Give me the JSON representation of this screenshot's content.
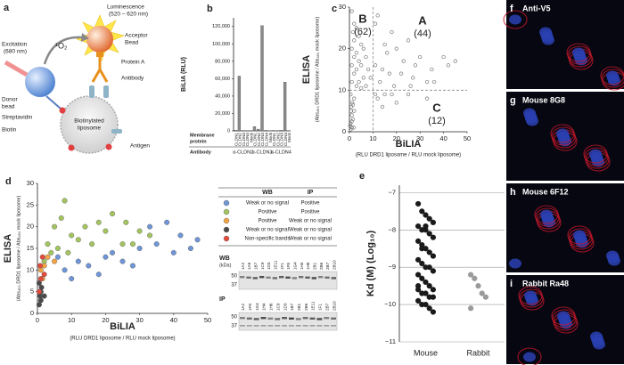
{
  "diagram": {
    "panel": "a",
    "luminescence": "Luminescence",
    "luminescence_range": "(520 – 620 nm)",
    "excitation": "Excitation",
    "excitation_wavelength": "(680 nm)",
    "singlet_oxygen": "¹O₂",
    "acceptor_bead": [
      "Acceptor",
      "Bead"
    ],
    "protein_a": "Protein A",
    "antibody": "Antibody",
    "donor_bead": [
      "Donor",
      "bead"
    ],
    "streptavidin": "Streptavidin",
    "biotin": "Biotin",
    "liposome": [
      "Biotinylated",
      "liposome"
    ],
    "antigen": "Antigen"
  },
  "chart_data": [
    {
      "panel": "b",
      "type": "bar",
      "y_label": "BiLIA (RLU)",
      "color": "#8a8a8a",
      "categories": [
        "CLDN1",
        "CLDN2",
        "CLDN3",
        "CLDN4",
        "Mock",
        "CLDN1",
        "CLDN2",
        "CLDN3",
        "CLDN4",
        "Mock",
        "CLDN1",
        "CLDN2",
        "CLDN3",
        "CLDN4",
        "Mock"
      ],
      "category_colors": [
        "#222222",
        "#d42020",
        "#222222",
        "#222222",
        "#222222",
        "#222222",
        "#222222",
        "#d42020",
        "#222222",
        "#222222",
        "#222222",
        "#222222",
        "#222222",
        "#d42020",
        "#222222"
      ],
      "values": [
        800,
        63000,
        500,
        300,
        200,
        5000,
        2000,
        121000,
        600,
        300,
        500,
        400,
        700,
        56000,
        300
      ],
      "ylim": [
        0,
        130000
      ],
      "yticks": [
        0,
        {
          "value": 20000,
          "label": "20,000"
        },
        {
          "value": 40000,
          "label": "40,000"
        },
        {
          "value": 60000,
          "label": "60,000"
        },
        {
          "value": 80000,
          "label": "80,000"
        },
        {
          "value": 100000,
          "label": "100,000"
        },
        {
          "value": 120000,
          "label": "120,000"
        }
      ],
      "membrane_label": [
        "Membrane",
        "protein"
      ],
      "antibody_label": "Antibody",
      "groups": [
        "α-CLDN2",
        "α-CLDN3",
        "α-CLDN4"
      ]
    },
    {
      "panel": "c",
      "type": "scatter",
      "color": "#777777",
      "x_label": "BiLIA",
      "x_sublabel": "(RLU DRD1 liposome / RLU mock liposome)",
      "y_label": "ELISA",
      "y_sublabel": "(Abs₄₅₀ DRD1 liposome / Abs₄₅₀ mock liposome)",
      "x": [
        1,
        2,
        1.5,
        3,
        4,
        2,
        5,
        1,
        3,
        6,
        2,
        4,
        7,
        1,
        3,
        5,
        8,
        2,
        6,
        4,
        9,
        1,
        3,
        7,
        5,
        12,
        18,
        15,
        20,
        25,
        23,
        30,
        11,
        14,
        17,
        22,
        27,
        33,
        36,
        40,
        45,
        13,
        19,
        26,
        16,
        11,
        28,
        35,
        42,
        12,
        15,
        20,
        25,
        33,
        14,
        18,
        11,
        0.5,
        1,
        0.5,
        1.5,
        1,
        2,
        0.8,
        1.2,
        2,
        0.5,
        1,
        0.3,
        1.8,
        0.7,
        1.5
      ],
      "values": [
        29,
        26,
        24,
        25,
        23,
        22,
        21,
        20,
        19,
        20,
        18,
        17,
        18,
        16,
        15,
        16,
        15,
        14,
        13,
        12,
        13,
        12,
        11,
        11,
        10.5,
        28,
        24,
        21,
        20,
        22,
        17,
        18,
        16,
        15,
        14,
        14,
        13,
        12,
        12,
        18,
        17,
        12,
        11,
        11,
        19,
        26,
        16,
        15,
        16,
        8,
        9,
        7,
        9,
        8,
        6,
        9,
        9,
        0.5,
        1,
        2,
        3,
        4,
        5,
        6,
        7,
        8,
        9,
        2.5,
        1.5,
        1,
        5,
        6.5
      ],
      "xlim": [
        0,
        50
      ],
      "ylim": [
        0,
        30
      ],
      "xticks": [
        0,
        10,
        20,
        30,
        40,
        50
      ],
      "yticks": [
        0,
        10,
        20,
        30
      ],
      "thresholds": {
        "x": 10,
        "y": 10
      },
      "annotations": [
        {
          "label": "B",
          "count": "(62)"
        },
        {
          "label": "A",
          "count": "(44)"
        },
        {
          "label": "C",
          "count": "(12)"
        }
      ]
    },
    {
      "panel": "d",
      "type": "scatter",
      "x_label": "BiLIA",
      "x_sublabel": "(RLU DRD1 liposome / RLU mock liposome)",
      "y_label": "ELISA",
      "y_sublabel": "(Abs₄₅₀ DRD1 liposome / Abs₄₅₀ mock liposome)",
      "xlim": [
        0,
        50
      ],
      "ylim": [
        0,
        30
      ],
      "xticks": [
        0,
        10,
        20,
        30,
        40,
        50
      ],
      "yticks": [
        0,
        5,
        10,
        15,
        20,
        25,
        30
      ],
      "legend_headers": [
        "WB",
        "IP"
      ],
      "series": [
        {
          "wb": "Weak or no signal",
          "ip": "Positive",
          "color": "#6f95d6",
          "x": [
            8,
            12,
            15,
            20,
            22,
            25,
            30,
            35,
            40,
            45,
            47,
            28,
            33,
            18,
            10,
            6,
            38,
            42
          ],
          "values": [
            10,
            12,
            11,
            13,
            14,
            12,
            15,
            16,
            14,
            15,
            17,
            11,
            20,
            9,
            8,
            13,
            21,
            18
          ]
        },
        {
          "wb": "Positive",
          "ip": "Positive",
          "color": "#a3c45e",
          "x": [
            3,
            5,
            7,
            8,
            10,
            12,
            14,
            16,
            18,
            20,
            22,
            25,
            26,
            28,
            30,
            33,
            2,
            4,
            6,
            9
          ],
          "values": [
            16,
            20,
            22,
            26,
            18,
            17,
            20,
            16,
            21,
            19,
            23,
            16,
            21,
            16,
            19,
            18,
            12,
            14,
            15,
            14
          ]
        },
        {
          "wb": "Positive",
          "ip": "Weak or no signal",
          "color": "#f2a444",
          "x": [
            1,
            2,
            3,
            5,
            1.5
          ],
          "values": [
            10,
            11,
            13,
            12,
            8
          ]
        },
        {
          "wb": "Weak or no signal",
          "ip": "Weak or no signal",
          "color": "#4a4a4a",
          "x": [
            0.5,
            1,
            1,
            0.8,
            1.2,
            0.5,
            2
          ],
          "values": [
            2,
            3,
            5,
            4,
            6,
            7,
            4
          ]
        },
        {
          "wb": "Non-specific bands",
          "ip": "Weak or no signal",
          "color": "#e44a3c",
          "x": [
            0.5,
            1,
            2,
            0.8,
            1.5
          ],
          "values": [
            5,
            8,
            9,
            11,
            13
          ]
        }
      ],
      "blots": [
        {
          "label": "WB",
          "unit": "(kDa)",
          "markers": [
            50,
            37
          ],
          "lanes": [
            {
              "name": "1A2",
              "color": "#2a5cc0"
            },
            {
              "name": "1A6",
              "color": "#e07020"
            },
            {
              "name": "1B7",
              "color": "#3a9a2a"
            },
            {
              "name": "1C9",
              "color": "#3a9a2a"
            },
            {
              "name": "1D3",
              "color": "#3a9a2a"
            },
            {
              "name": "1E11",
              "color": "#2a5cc0"
            },
            {
              "name": "1F1",
              "color": "#2a5cc0"
            },
            {
              "name": "1F8",
              "color": "#2a5cc0"
            },
            {
              "name": "1G4",
              "color": "#2a5cc0"
            },
            {
              "name": "1H4",
              "color": "#3a9a2a"
            },
            {
              "name": "1H6",
              "color": "#e07020"
            },
            {
              "name": "2B1",
              "color": "#3a9a2a"
            },
            {
              "name": "2B6",
              "color": "#3a9a2a"
            },
            {
              "name": "2B7",
              "color": "#3a9a2a"
            },
            {
              "name": "2B10",
              "color": "#2a5cc0"
            }
          ]
        },
        {
          "label": "IP",
          "unit": "",
          "markers": [
            50,
            37
          ],
          "lanes": [
            {
              "name": "1A2",
              "color": "#2a5cc0"
            },
            {
              "name": "1F8",
              "color": "#2a5cc0"
            },
            {
              "name": "1G4",
              "color": "#2a5cc0"
            },
            {
              "name": "1H4",
              "color": "#3a9a2a"
            },
            {
              "name": "1H6",
              "color": "#e07020"
            },
            {
              "name": "1C9",
              "color": "#3a9a2a"
            },
            {
              "name": "1D3",
              "color": "#3a9a2a"
            },
            {
              "name": "1B7",
              "color": "#3a9a2a"
            },
            {
              "name": "2B1",
              "color": "#3a9a2a"
            },
            {
              "name": "2B6",
              "color": "#3a9a2a"
            },
            {
              "name": "1E11",
              "color": "#2a5cc0"
            },
            {
              "name": "1F1",
              "color": "#2a5cc0"
            },
            {
              "name": "2B7",
              "color": "#3a9a2a"
            },
            {
              "name": "2B10",
              "color": "#2a5cc0"
            }
          ]
        }
      ]
    },
    {
      "panel": "e",
      "type": "dot",
      "y_label": "Kd (M) (Log₁₀)",
      "grid": true,
      "ylim": [
        -11,
        -6.8
      ],
      "yticks": [
        {
          "value": -7,
          "label": "−7"
        },
        {
          "value": -8,
          "label": "−8"
        },
        {
          "value": -9,
          "label": "−9"
        },
        {
          "value": -10,
          "label": "−10"
        },
        {
          "value": -11,
          "label": "−11"
        }
      ],
      "series": [
        {
          "name": "Mouse",
          "color": "#1a1a1a",
          "values": [
            -7.3,
            -7.5,
            -7.6,
            -7.7,
            -7.8,
            -7.9,
            -8.0,
            -8.0,
            -8.1,
            -8.2,
            -8.3,
            -8.4,
            -8.5,
            -8.6,
            -8.7,
            -8.8,
            -8.9,
            -9.0,
            -9.0,
            -9.1,
            -9.2,
            -9.3,
            -9.4,
            -9.5,
            -9.6,
            -9.6,
            -9.7,
            -9.7,
            -9.8,
            -9.8,
            -9.9,
            -10.0,
            -10.0,
            -10.1,
            -10.2,
            -9.5,
            -8.5,
            -7.9
          ]
        },
        {
          "name": "Rabbit",
          "color": "#9a9a9a",
          "values": [
            -9.2,
            -9.3,
            -9.5,
            -9.7,
            -9.8,
            -10.1
          ]
        }
      ]
    }
  ],
  "images": [
    {
      "panel": "f",
      "label": "Anti-V5"
    },
    {
      "panel": "g",
      "label": "Mouse 8G8"
    },
    {
      "panel": "h",
      "label": "Mouse 6F12"
    },
    {
      "panel": "i",
      "label": "Rabbit Ra48"
    }
  ]
}
